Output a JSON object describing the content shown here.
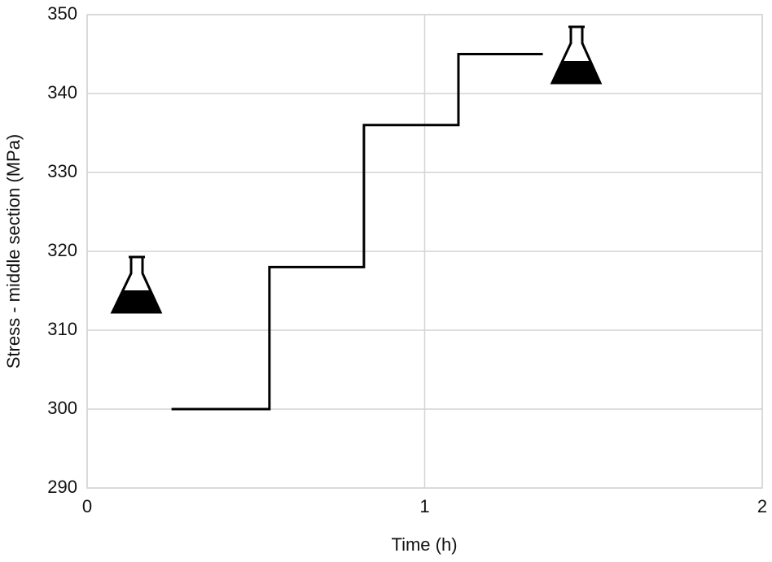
{
  "chart_data": {
    "type": "line",
    "x_label": "Time (h)",
    "y_label": "Stress - middle section (MPa)",
    "x": [
      0.25,
      0.54,
      0.54,
      0.82,
      0.82,
      1.1,
      1.1,
      1.35
    ],
    "values": [
      300,
      300,
      318,
      318,
      336,
      336,
      345,
      345
    ],
    "color": "#000000",
    "xlim": [
      0,
      2
    ],
    "xticks": [
      0,
      1,
      2
    ],
    "ylim": [
      290,
      350
    ],
    "yticks": [
      290,
      300,
      310,
      320,
      330,
      340,
      350
    ],
    "grid": true
  }
}
